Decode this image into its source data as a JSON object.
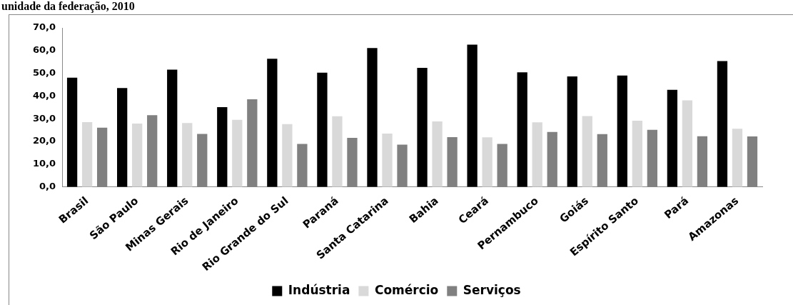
{
  "chart_data": {
    "type": "bar",
    "title": "unidade da federação, 2010",
    "categories": [
      "Brasil",
      "São Paulo",
      "Minas Gerais",
      "Rio de Janeiro",
      "Rio Grande do Sul",
      "Paraná",
      "Santa Catarina",
      "Bahia",
      "Ceará",
      "Pernambuco",
      "Goiás",
      "Espírito Santo",
      "Pará",
      "Amazonas"
    ],
    "series": [
      {
        "name": "Indústria",
        "color": "#000000",
        "values": [
          48.1,
          43.5,
          51.6,
          35.1,
          56.4,
          50.3,
          61.1,
          52.4,
          62.6,
          50.4,
          48.6,
          49.0,
          42.7,
          55.4
        ]
      },
      {
        "name": "Comércio",
        "color": "#d9d9d9",
        "values": [
          28.5,
          27.9,
          28.1,
          29.5,
          27.6,
          31.1,
          23.5,
          28.8,
          21.8,
          28.4,
          31.2,
          29.1,
          38.1,
          25.6
        ]
      },
      {
        "name": "Serviços",
        "color": "#808080",
        "values": [
          26.1,
          31.6,
          23.3,
          38.6,
          18.9,
          21.6,
          18.6,
          21.9,
          18.9,
          24.2,
          23.2,
          25.1,
          22.3,
          22.2
        ]
      }
    ],
    "ylim": [
      0,
      70
    ],
    "yticks": [
      {
        "value": 0,
        "label": "0,0"
      },
      {
        "value": 10,
        "label": "10,0"
      },
      {
        "value": 20,
        "label": "20,0"
      },
      {
        "value": 30,
        "label": "30,0"
      },
      {
        "value": 40,
        "label": "40,0"
      },
      {
        "value": 50,
        "label": "50,0"
      },
      {
        "value": 60,
        "label": "60,0"
      },
      {
        "value": 70,
        "label": "70,0"
      }
    ],
    "grid": false,
    "legend": "bottom"
  }
}
